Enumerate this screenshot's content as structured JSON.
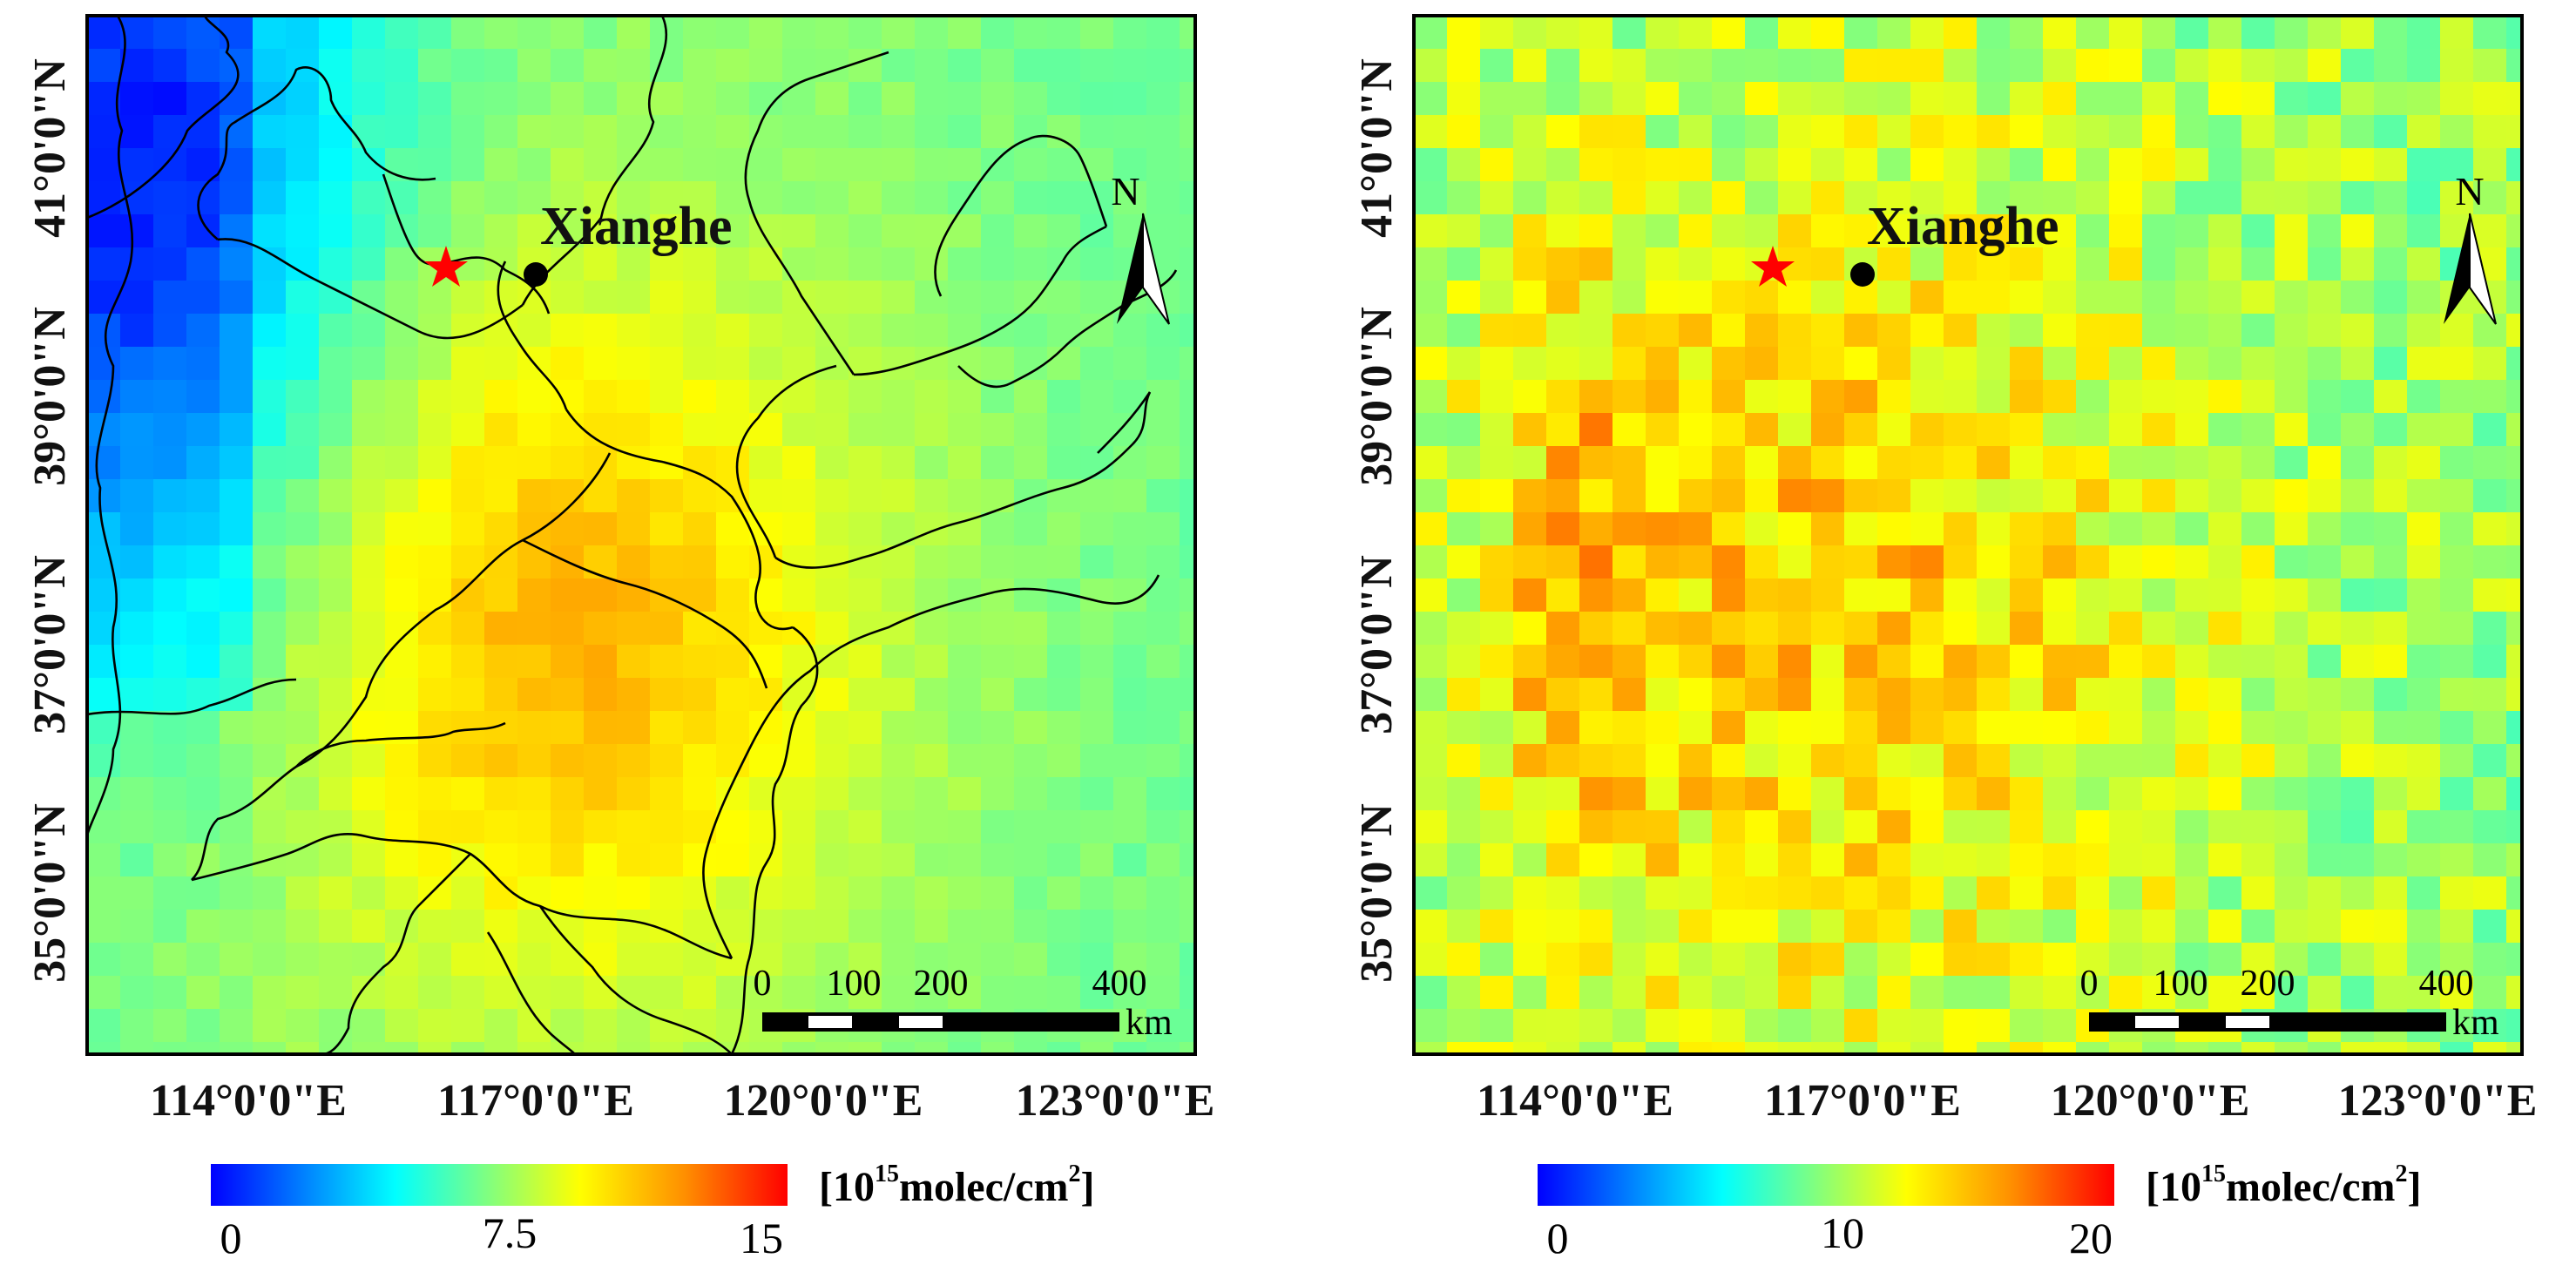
{
  "figure": {
    "panels": [
      {
        "id": "left",
        "place_label": "Xianghe",
        "north_label": "N",
        "lat_labels": [
          "35°0'0\"N",
          "37°0'0\"N",
          "39°0'0\"N",
          "41°0'0\"N"
        ],
        "lon_labels": [
          "114°0'0\"E",
          "117°0'0\"E",
          "120°0'0\"E",
          "123°0'0\"E"
        ],
        "scale": {
          "ticks": [
            "0",
            "100",
            "200",
            "400"
          ],
          "unit": "km"
        },
        "colorbar": {
          "min_label": "0",
          "mid_label": "7.5",
          "max_label": "15",
          "unit_prefix": "[10",
          "unit_exp": "15",
          "unit_main": "molec/cm",
          "unit_sq": "2",
          "unit_close": "]"
        }
      },
      {
        "id": "right",
        "place_label": "Xianghe",
        "north_label": "N",
        "lat_labels": [
          "35°0'0\"N",
          "37°0'0\"N",
          "39°0'0\"N",
          "41°0'0\"N"
        ],
        "lon_labels": [
          "114°0'0\"E",
          "117°0'0\"E",
          "120°0'0\"E",
          "123°0'0\"E"
        ],
        "scale": {
          "ticks": [
            "0",
            "100",
            "200",
            "400"
          ],
          "unit": "km"
        },
        "colorbar": {
          "min_label": "0",
          "mid_label": "10",
          "max_label": "20",
          "unit_prefix": "[10",
          "unit_exp": "15",
          "unit_main": "molec/cm",
          "unit_sq": "2",
          "unit_close": "]"
        }
      }
    ]
  },
  "colors": {
    "colormap": [
      "#0000ff",
      "#0090ff",
      "#00ffff",
      "#80ff80",
      "#ffff00",
      "#ff9000",
      "#ff0000"
    ],
    "boundary": "#000000",
    "star": "#ff0000",
    "site_marker": "#000000"
  }
}
